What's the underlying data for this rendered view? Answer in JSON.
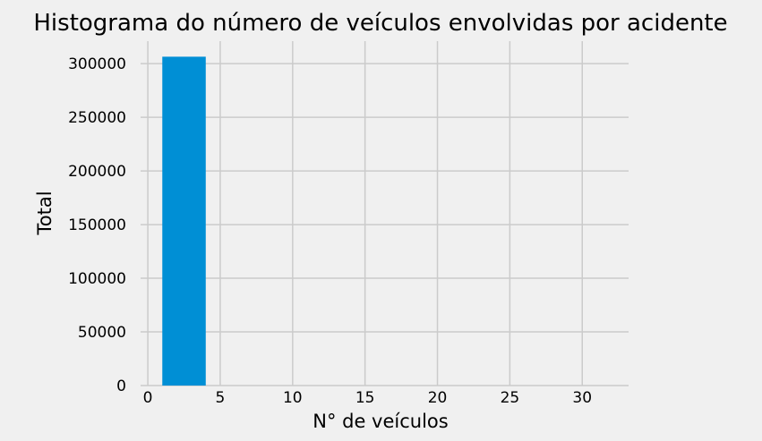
{
  "chart_data": {
    "type": "histogram",
    "title": "Histograma do número de veículos envolvidas por acidente",
    "xlabel": "N° de veículos",
    "ylabel": "Total",
    "xlim": [
      -0.5,
      33.2
    ],
    "ylim": [
      0,
      321000
    ],
    "xticks": [
      0,
      5,
      10,
      15,
      20,
      25,
      30
    ],
    "yticks": [
      0,
      50000,
      100000,
      150000,
      200000,
      250000,
      300000
    ],
    "bins": [
      {
        "x0": 1,
        "x1": 4,
        "count": 306500
      },
      {
        "x0": 4,
        "x1": 7,
        "count": 0
      },
      {
        "x0": 7,
        "x1": 10,
        "count": 0
      },
      {
        "x0": 10,
        "x1": 13,
        "count": 0
      },
      {
        "x0": 13,
        "x1": 16,
        "count": 0
      },
      {
        "x0": 16,
        "x1": 19,
        "count": 0
      },
      {
        "x0": 19,
        "x1": 22,
        "count": 0
      },
      {
        "x0": 22,
        "x1": 25,
        "count": 0
      },
      {
        "x0": 25,
        "x1": 28,
        "count": 0
      },
      {
        "x0": 28,
        "x1": 31,
        "count": 0
      }
    ],
    "grid": true,
    "colors": {
      "bar": "#008fd5",
      "background": "#f0f0f0",
      "grid": "#cbcbcb"
    }
  }
}
